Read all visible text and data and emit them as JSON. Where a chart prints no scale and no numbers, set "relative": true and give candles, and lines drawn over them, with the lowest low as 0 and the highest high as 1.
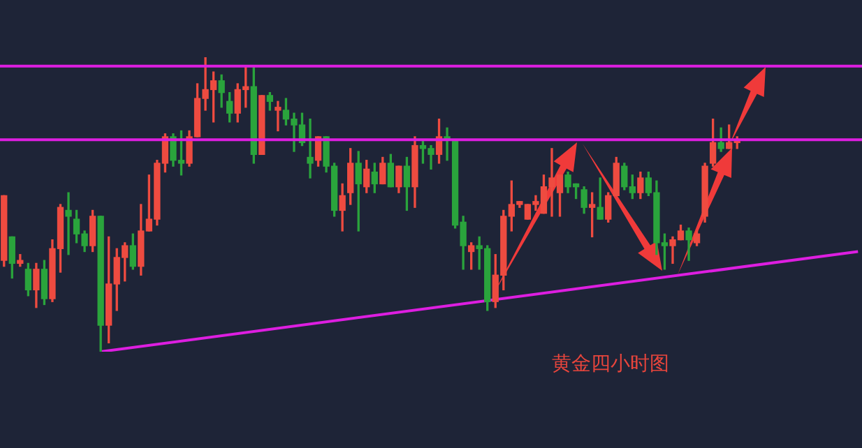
{
  "chart_data": {
    "type": "candlestick",
    "relative": true,
    "legend": false,
    "annotations": [
      "黄金四小时图"
    ],
    "categories": [
      null,
      null,
      null,
      null,
      null,
      null,
      null,
      null,
      null,
      null,
      null,
      null,
      null,
      null,
      null,
      null,
      null,
      null,
      null,
      null,
      null,
      null,
      null,
      null,
      null,
      null,
      null,
      null,
      null,
      null,
      null,
      null,
      null,
      null,
      null,
      null,
      null,
      null,
      null,
      null,
      null,
      null,
      null,
      null,
      null,
      null,
      null,
      null,
      null,
      null,
      null,
      null,
      null,
      null,
      null,
      null,
      null,
      null,
      null,
      null,
      null,
      null,
      null,
      null,
      null,
      null,
      null,
      null,
      null,
      null,
      null,
      null,
      null,
      null,
      null,
      null,
      null,
      null,
      null,
      null,
      null,
      null,
      null,
      null,
      null,
      null,
      null,
      null,
      null,
      null,
      null,
      null,
      null,
      null,
      null,
      null,
      null,
      null,
      null,
      null,
      null,
      null,
      null,
      null,
      null,
      null,
      null
    ],
    "ohlc": [
      [
        0.31,
        0.53,
        0.29,
        0.53
      ],
      [
        0.39,
        0.39,
        0.25,
        0.3
      ],
      [
        0.3,
        0.33,
        0.29,
        0.31
      ],
      [
        0.28,
        0.3,
        0.19,
        0.21
      ],
      [
        0.21,
        0.3,
        0.15,
        0.28
      ],
      [
        0.28,
        0.31,
        0.16,
        0.18
      ],
      [
        0.18,
        0.38,
        0.17,
        0.35
      ],
      [
        0.35,
        0.5,
        0.27,
        0.49
      ],
      [
        0.48,
        0.54,
        0.33,
        0.46
      ],
      [
        0.45,
        0.48,
        0.37,
        0.4
      ],
      [
        0.4,
        0.41,
        0.34,
        0.36
      ],
      [
        0.36,
        0.48,
        0.34,
        0.46
      ],
      [
        0.46,
        0.46,
        0,
        0.09
      ],
      [
        0.09,
        0.39,
        0.03,
        0.23
      ],
      [
        0.23,
        0.35,
        0.14,
        0.32
      ],
      [
        0.32,
        0.37,
        0.24,
        0.36
      ],
      [
        0.36,
        0.4,
        0.28,
        0.29
      ],
      [
        0.29,
        0.5,
        0.26,
        0.41
      ],
      [
        0.41,
        0.6,
        0.41,
        0.45
      ],
      [
        0.45,
        0.65,
        0.43,
        0.64
      ],
      [
        0.64,
        0.74,
        0.61,
        0.73
      ],
      [
        0.73,
        0.74,
        0.63,
        0.65
      ],
      [
        0.65,
        0.75,
        0.6,
        0.64
      ],
      [
        0.64,
        0.75,
        0.63,
        0.73
      ],
      [
        0.73,
        0.91,
        0.73,
        0.86
      ],
      [
        0.86,
        1,
        0.82,
        0.89
      ],
      [
        0.89,
        0.95,
        0.78,
        0.92
      ],
      [
        0.92,
        0.94,
        0.83,
        0.88
      ],
      [
        0.85,
        0.88,
        0.78,
        0.81
      ],
      [
        0.81,
        0.91,
        0.78,
        0.89
      ],
      [
        0.89,
        0.97,
        0.83,
        0.9
      ],
      [
        0.9,
        0.97,
        0.64,
        0.67
      ],
      [
        0.67,
        0.87,
        0.67,
        0.87
      ],
      [
        0.87,
        0.88,
        0.82,
        0.85
      ],
      [
        0.82,
        0.85,
        0.75,
        0.83
      ],
      [
        0.82,
        0.86,
        0.77,
        0.79
      ],
      [
        0.79,
        0.81,
        0.68,
        0.77
      ],
      [
        0.77,
        0.81,
        0.7,
        0.71
      ],
      [
        0.66,
        0.79,
        0.59,
        0.64
      ],
      [
        0.65,
        0.73,
        0.63,
        0.73
      ],
      [
        0.73,
        0.73,
        0.61,
        0.63
      ],
      [
        0.63,
        0.64,
        0.46,
        0.48
      ],
      [
        0.48,
        0.57,
        0.41,
        0.53
      ],
      [
        0.54,
        0.69,
        0.5,
        0.64
      ],
      [
        0.64,
        0.68,
        0.41,
        0.57
      ],
      [
        0.56,
        0.65,
        0.54,
        0.62
      ],
      [
        0.61,
        0.64,
        0.54,
        0.57
      ],
      [
        0.57,
        0.66,
        0.57,
        0.64
      ],
      [
        0.64,
        0.67,
        0.56,
        0.56
      ],
      [
        0.56,
        0.63,
        0.54,
        0.63
      ],
      [
        0.63,
        0.66,
        0.48,
        0.56
      ],
      [
        0.56,
        0.73,
        0.49,
        0.7
      ],
      [
        0.7,
        0.72,
        0.64,
        0.69
      ],
      [
        0.69,
        0.7,
        0.62,
        0.67
      ],
      [
        0.67,
        0.79,
        0.64,
        0.73
      ],
      [
        0.73,
        0.76,
        0.65,
        0.72
      ],
      [
        0.72,
        0.72,
        0.42,
        0.43
      ],
      [
        0.44,
        0.46,
        0.28,
        0.36
      ],
      [
        0.34,
        0.37,
        0.28,
        0.36
      ],
      [
        0.36,
        0.39,
        0.28,
        0.35
      ],
      [
        0.35,
        0.36,
        0.14,
        0.17
      ],
      [
        0.17,
        0.33,
        0.15,
        0.26
      ],
      [
        0.26,
        0.48,
        0.21,
        0.46
      ],
      [
        0.46,
        0.58,
        0.41,
        0.5
      ],
      [
        0.5,
        0.51,
        0.49,
        0.51
      ],
      [
        0.45,
        0.5,
        0.45,
        0.5
      ],
      [
        0.5,
        0.53,
        0.48,
        0.51
      ],
      [
        0.47,
        0.6,
        0.47,
        0.56
      ],
      [
        0.56,
        0.69,
        0.46,
        0.59
      ],
      [
        0.54,
        0.6,
        0.46,
        0.6
      ],
      [
        0.6,
        0.61,
        0.54,
        0.56
      ],
      [
        0.57,
        0.57,
        0.52,
        0.56
      ],
      [
        0.55,
        0.56,
        0.47,
        0.49
      ],
      [
        0.49,
        0.54,
        0.39,
        0.5
      ],
      [
        0.49,
        0.59,
        0.45,
        0.45
      ],
      [
        0.45,
        0.54,
        0.44,
        0.53
      ],
      [
        0.53,
        0.66,
        0.53,
        0.64
      ],
      [
        0.63,
        0.64,
        0.55,
        0.56
      ],
      [
        0.56,
        0.6,
        0.52,
        0.54
      ],
      [
        0.54,
        0.61,
        0.52,
        0.59
      ],
      [
        0.59,
        0.61,
        0.53,
        0.54
      ],
      [
        0.54,
        0.58,
        0.33,
        0.37
      ],
      [
        0.37,
        0.4,
        0.28,
        0.36
      ],
      [
        0.36,
        0.39,
        0.3,
        0.38
      ],
      [
        0.38,
        0.43,
        0.38,
        0.41
      ],
      [
        0.41,
        0.42,
        0.31,
        0.38
      ],
      [
        0.37,
        0.41,
        0.36,
        0.4
      ],
      [
        0.46,
        0.64,
        0.44,
        0.63
      ],
      [
        0.64,
        0.79,
        0.63,
        0.71
      ],
      [
        0.71,
        0.76,
        0.68,
        0.69
      ],
      [
        0.69,
        0.77,
        0.69,
        0.71
      ],
      [
        0.71,
        0.73,
        0.69,
        0.72
      ],
      null,
      null,
      null,
      null,
      null,
      null,
      null,
      null,
      null,
      null,
      null,
      null,
      null,
      null,
      null
    ],
    "colors": [
      "#ee4b40",
      "#2aa43c",
      "#ee4b40",
      "#2aa43c",
      "#ee4b40",
      "#2aa43c",
      "#ee4b40",
      "#ee4b40",
      "#2aa43c",
      "#2aa43c",
      "#2aa43c",
      "#ee4b40",
      "#2aa43c",
      "#ee4b40",
      "#ee4b40",
      "#ee4b40",
      "#2aa43c",
      "#ee4b40",
      "#ee4b40",
      "#ee4b40",
      "#ee4b40",
      "#2aa43c",
      "#2aa43c",
      "#ee4b40",
      "#ee4b40",
      "#ee4b40",
      "#ee4b40",
      "#2aa43c",
      "#2aa43c",
      "#ee4b40",
      "#ee4b40",
      "#2aa43c",
      "#ee4b40",
      "#2aa43c",
      "#ee4b40",
      "#2aa43c",
      "#2aa43c",
      "#2aa43c",
      "#2aa43c",
      "#ee4b40",
      "#2aa43c",
      "#2aa43c",
      "#ee4b40",
      "#ee4b40",
      "#2aa43c",
      "#ee4b40",
      "#2aa43c",
      "#ee4b40",
      "#2aa43c",
      "#ee4b40",
      "#2aa43c",
      "#ee4b40",
      "#2aa43c",
      "#2aa43c",
      "#ee4b40",
      "#2aa43c",
      "#2aa43c",
      "#2aa43c",
      "#ee4b40",
      "#2aa43c",
      "#2aa43c",
      "#ee4b40",
      "#ee4b40",
      "#ee4b40",
      "#ee4b40",
      "#ee4b40",
      "#ee4b40",
      "#ee4b40",
      "#ee4b40",
      "#ee4b40",
      "#2aa43c",
      "#2aa43c",
      "#2aa43c",
      "#ee4b40",
      "#2aa43c",
      "#ee4b40",
      "#ee4b40",
      "#2aa43c",
      "#2aa43c",
      "#ee4b40",
      "#2aa43c",
      "#2aa43c",
      "#2aa43c",
      "#ee4b40",
      "#ee4b40",
      "#2aa43c",
      "#ee4b40",
      "#ee4b40",
      "#ee4b40",
      "#2aa43c",
      "#ee4b40",
      "#ee4b40",
      null,
      null,
      null,
      null,
      null,
      null,
      null,
      null,
      null,
      null,
      null,
      null,
      null,
      null,
      null
    ],
    "series": [
      {
        "type": "line",
        "color": "#dd1ee0",
        "values": [
          null,
          null,
          null,
          null,
          null,
          null,
          null,
          null,
          null,
          null,
          null,
          null,
          0,
          null,
          null,
          null,
          null,
          null,
          null,
          null,
          null,
          null,
          null,
          null,
          null,
          null,
          null,
          null,
          null,
          null,
          null,
          null,
          null,
          null,
          null,
          null,
          null,
          null,
          null,
          null,
          null,
          null,
          null,
          null,
          null,
          null,
          null,
          null,
          null,
          null,
          null,
          null,
          null,
          null,
          null,
          null,
          null,
          null,
          null,
          null,
          null,
          null,
          null,
          null,
          null,
          null,
          null,
          null,
          null,
          null,
          null,
          null,
          null,
          null,
          null,
          null,
          null,
          null,
          null,
          null,
          null,
          null,
          null,
          null,
          null,
          null,
          null,
          null,
          null,
          null,
          null,
          null,
          null,
          null,
          null,
          null,
          null,
          null,
          null,
          null,
          null,
          null,
          null,
          null,
          null,
          null,
          0.34
        ]
      }
    ],
    "ref_lines": [
      {
        "axis": "y",
        "value": 0.97,
        "color": "#dd1ee0"
      },
      {
        "axis": "y",
        "value": 0.72,
        "color": "#dd1ee0"
      }
    ]
  }
}
